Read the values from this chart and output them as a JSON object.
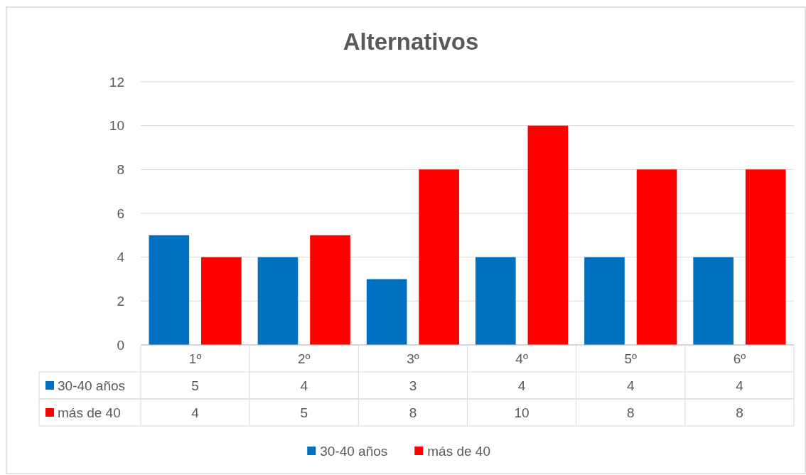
{
  "chart_data": {
    "type": "bar",
    "title": "Alternativos",
    "categories": [
      "1º",
      "2º",
      "3º",
      "4º",
      "5º",
      "6º"
    ],
    "series": [
      {
        "name": "30-40 años",
        "color": "#0070c0",
        "values": [
          5,
          4,
          3,
          4,
          4,
          4
        ]
      },
      {
        "name": "más de 40",
        "color": "#ff0000",
        "values": [
          4,
          5,
          8,
          10,
          8,
          8
        ]
      }
    ],
    "ylim": [
      0,
      12
    ],
    "yticks": [
      0,
      2,
      4,
      6,
      8,
      10,
      12
    ],
    "grid": "y",
    "legend": "bottom",
    "data_labels": true
  }
}
